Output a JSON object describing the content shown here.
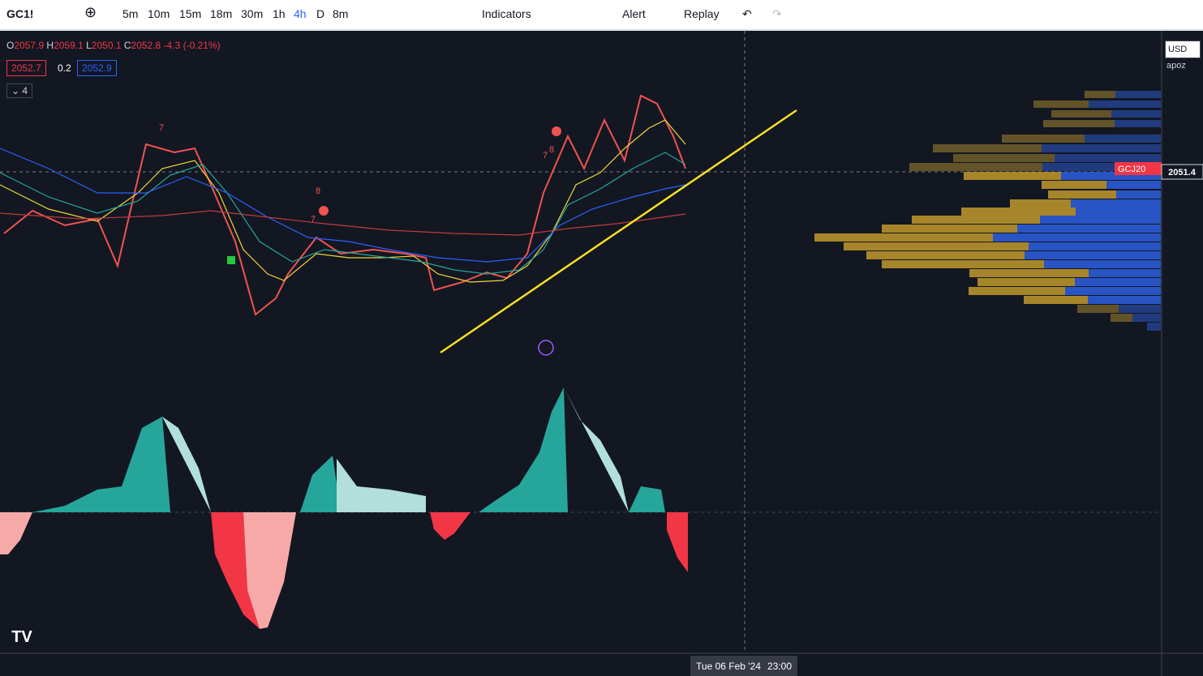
{
  "toolbar": {
    "symbol": "GC1!",
    "intervals": [
      "5m",
      "10m",
      "15m",
      "18m",
      "30m",
      "1h",
      "4h",
      "D",
      "8m"
    ],
    "indicators": "Indicators",
    "alert": "Alert",
    "replay": "Replay"
  },
  "legend": {
    "ohlc": [
      {
        "label": "O",
        "value": "2057.9"
      },
      {
        "label": "H",
        "value": "2059.1"
      },
      {
        "label": "L",
        "value": "2050.1"
      },
      {
        "label": "C",
        "value": "2052.8"
      }
    ],
    "change": "-4.3 (-0.21%)",
    "bid": "2052.7",
    "spread": "0.2",
    "ask": "2052.9",
    "collapsed_count": "4"
  },
  "markers": [
    "7",
    "7",
    "8",
    "7",
    "8"
  ],
  "price_axis": {
    "currency": "USD",
    "scale": "apoz",
    "contract": "GCJ20",
    "last_price": "2051.4"
  },
  "time_axis": {
    "date": "Tue 06 Feb '24",
    "time": "23:00"
  }
}
